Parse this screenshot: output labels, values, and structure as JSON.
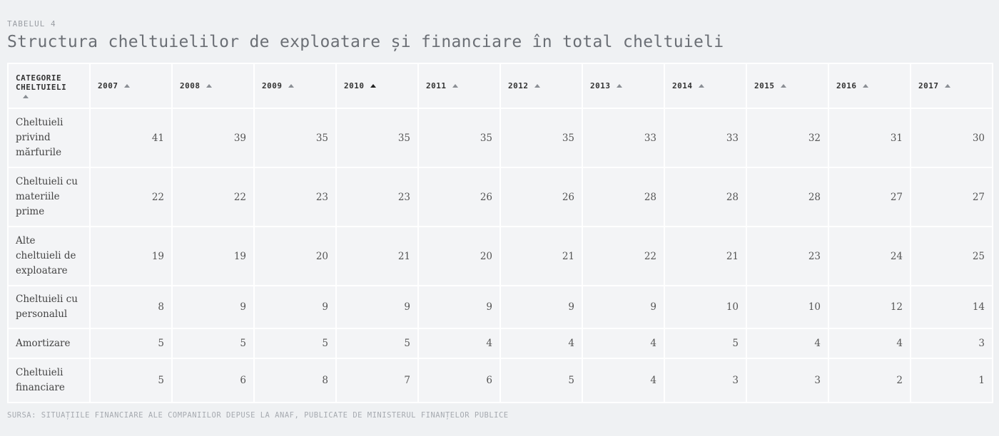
{
  "label": "TABELUL 4",
  "title": "Structura cheltuielilor de exploatare și financiare în total cheltuieli",
  "table": {
    "headers": [
      "CATEGORIE CHELTUIELI",
      "2007",
      "2008",
      "2009",
      "2010",
      "2011",
      "2012",
      "2013",
      "2014",
      "2015",
      "2016",
      "2017"
    ],
    "rows": [
      [
        "Cheltuieli privind mărfurile",
        41,
        39,
        35,
        35,
        35,
        35,
        33,
        33,
        32,
        31,
        30
      ],
      [
        "Cheltuieli cu materiile prime",
        22,
        22,
        23,
        23,
        26,
        26,
        28,
        28,
        28,
        27,
        27
      ],
      [
        "Alte cheltuieli de exploatare",
        19,
        19,
        20,
        21,
        20,
        21,
        22,
        21,
        23,
        24,
        25
      ],
      [
        "Cheltuieli cu personalul",
        8,
        9,
        9,
        9,
        9,
        9,
        9,
        10,
        10,
        12,
        14
      ],
      [
        "Amortizare",
        5,
        5,
        5,
        5,
        4,
        4,
        4,
        5,
        4,
        4,
        3
      ],
      [
        "Cheltuieli financiare",
        5,
        6,
        8,
        7,
        6,
        5,
        4,
        3,
        3,
        2,
        1
      ]
    ]
  },
  "source": "SURSA: SITUAȚIILE FINANCIARE ALE COMPANIILOR DEPUSE LA ANAF, PUBLICATE DE MINISTERUL FINANȚELOR PUBLICE"
}
